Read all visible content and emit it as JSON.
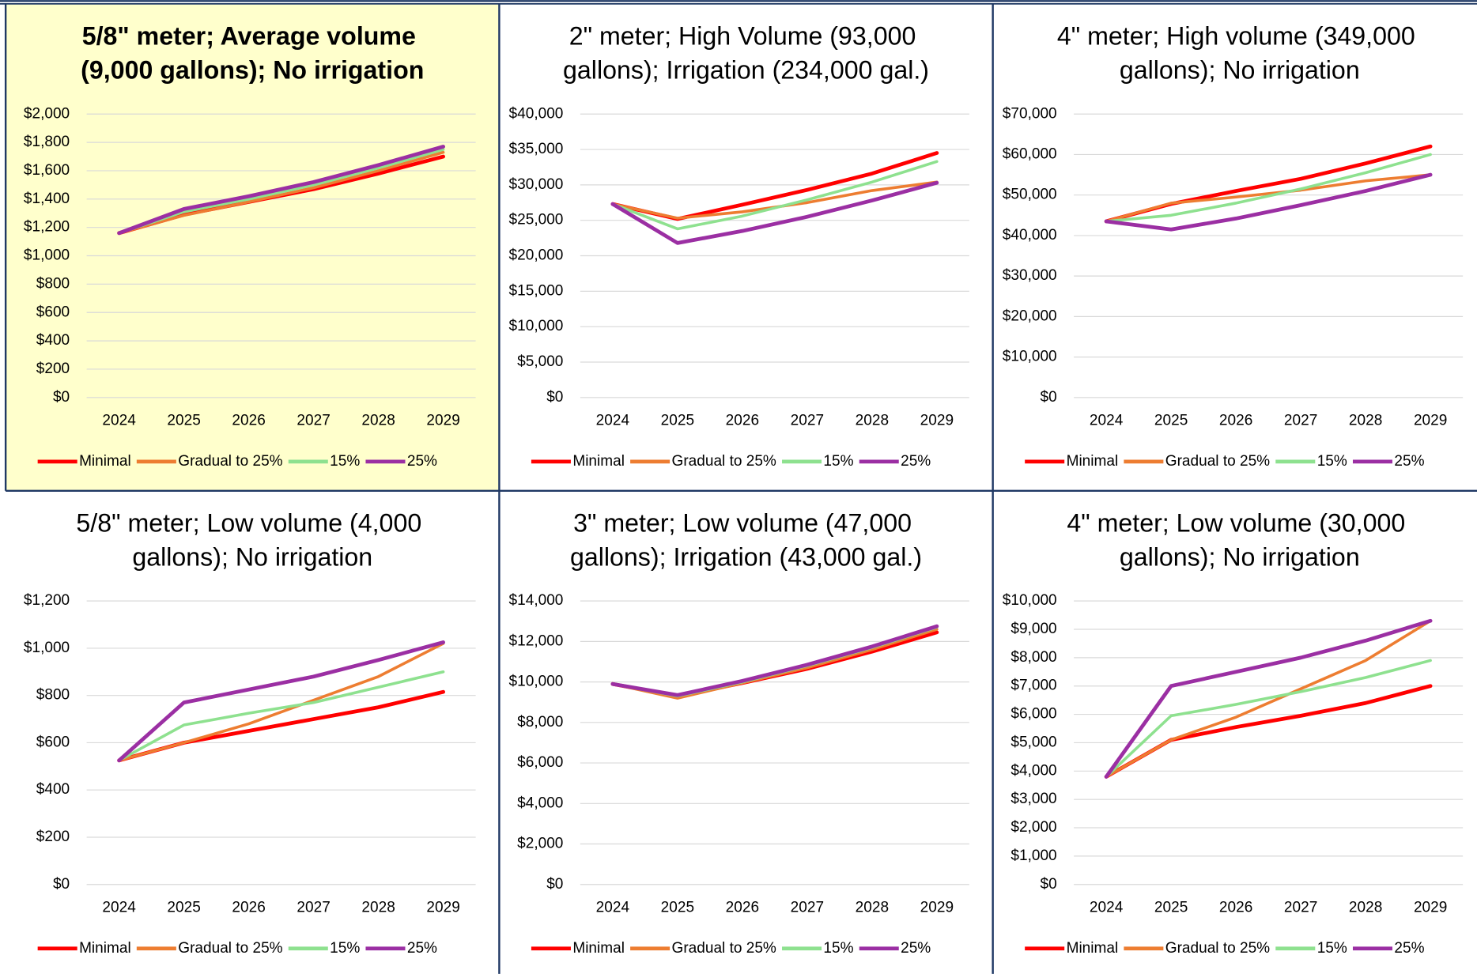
{
  "chart_data": [
    {
      "type": "line",
      "title": "5/8\" meter; Average volume (9,000 gallons); No irrigation",
      "title_bold": true,
      "background": "#ffffcc",
      "categories": [
        "2024",
        "2025",
        "2026",
        "2027",
        "2028",
        "2029"
      ],
      "ylim": [
        0,
        2000
      ],
      "yticks": [
        {
          "value": 0,
          "label": "$0"
        },
        {
          "value": 200,
          "label": "$200"
        },
        {
          "value": 400,
          "label": "$400"
        },
        {
          "value": 600,
          "label": "$600"
        },
        {
          "value": 800,
          "label": "$800"
        },
        {
          "value": 1000,
          "label": "$1,000"
        },
        {
          "value": 1200,
          "label": "$1,200"
        },
        {
          "value": 1400,
          "label": "$1,400"
        },
        {
          "value": 1600,
          "label": "$1,600"
        },
        {
          "value": 1800,
          "label": "$1,800"
        },
        {
          "value": 2000,
          "label": "$2,000"
        }
      ],
      "grid": true,
      "series": [
        {
          "name": "Minimal",
          "color": "#ff0000",
          "values": [
            1160,
            1290,
            1380,
            1470,
            1580,
            1700
          ]
        },
        {
          "name": "Gradual to 25%",
          "color": "#ed7d31",
          "values": [
            1160,
            1285,
            1380,
            1480,
            1600,
            1730
          ]
        },
        {
          "name": "15%",
          "color": "#8ee18f",
          "values": [
            1160,
            1310,
            1400,
            1500,
            1620,
            1750
          ]
        },
        {
          "name": "25%",
          "color": "#9b2fa3",
          "values": [
            1160,
            1330,
            1420,
            1520,
            1640,
            1770
          ]
        }
      ]
    },
    {
      "type": "line",
      "title": "2\" meter; High Volume (93,000 gallons); Irrigation (234,000 gal.)",
      "title_bold": false,
      "background": "#ffffff",
      "categories": [
        "2024",
        "2025",
        "2026",
        "2027",
        "2028",
        "2029"
      ],
      "ylim": [
        0,
        40000
      ],
      "yticks": [
        {
          "value": 0,
          "label": "$0"
        },
        {
          "value": 5000,
          "label": "$5,000"
        },
        {
          "value": 10000,
          "label": "$10,000"
        },
        {
          "value": 15000,
          "label": "$15,000"
        },
        {
          "value": 20000,
          "label": "$20,000"
        },
        {
          "value": 25000,
          "label": "$25,000"
        },
        {
          "value": 30000,
          "label": "$30,000"
        },
        {
          "value": 35000,
          "label": "$35,000"
        },
        {
          "value": 40000,
          "label": "$40,000"
        }
      ],
      "grid": true,
      "series": [
        {
          "name": "Minimal",
          "color": "#ff0000",
          "values": [
            27300,
            25200,
            27200,
            29300,
            31600,
            34500
          ]
        },
        {
          "name": "Gradual to 25%",
          "color": "#ed7d31",
          "values": [
            27300,
            25300,
            26200,
            27500,
            29200,
            30400
          ]
        },
        {
          "name": "15%",
          "color": "#8ee18f",
          "values": [
            27300,
            23800,
            25600,
            27900,
            30400,
            33300
          ]
        },
        {
          "name": "25%",
          "color": "#9b2fa3",
          "values": [
            27300,
            21800,
            23500,
            25500,
            27800,
            30300
          ]
        }
      ]
    },
    {
      "type": "line",
      "title": "4\" meter; High volume (349,000 gallons); No irrigation",
      "title_bold": false,
      "background": "#ffffff",
      "categories": [
        "2024",
        "2025",
        "2026",
        "2027",
        "2028",
        "2029"
      ],
      "ylim": [
        0,
        70000
      ],
      "yticks": [
        {
          "value": 0,
          "label": "$0"
        },
        {
          "value": 10000,
          "label": "$10,000"
        },
        {
          "value": 20000,
          "label": "$20,000"
        },
        {
          "value": 30000,
          "label": "$30,000"
        },
        {
          "value": 40000,
          "label": "$40,000"
        },
        {
          "value": 50000,
          "label": "$50,000"
        },
        {
          "value": 60000,
          "label": "$60,000"
        },
        {
          "value": 70000,
          "label": "$70,000"
        }
      ],
      "grid": true,
      "series": [
        {
          "name": "Minimal",
          "color": "#ff0000",
          "values": [
            43500,
            47800,
            51000,
            54000,
            57800,
            62000
          ]
        },
        {
          "name": "Gradual to 25%",
          "color": "#ed7d31",
          "values": [
            43500,
            48000,
            49500,
            51200,
            53500,
            55000
          ]
        },
        {
          "name": "15%",
          "color": "#8ee18f",
          "values": [
            43500,
            45000,
            48000,
            51500,
            55500,
            60000
          ]
        },
        {
          "name": "25%",
          "color": "#9b2fa3",
          "values": [
            43500,
            41500,
            44200,
            47500,
            51000,
            55000
          ]
        }
      ]
    },
    {
      "type": "line",
      "title": "5/8\" meter; Low volume (4,000 gallons); No irrigation",
      "title_bold": false,
      "background": "#ffffff",
      "categories": [
        "2024",
        "2025",
        "2026",
        "2027",
        "2028",
        "2029"
      ],
      "ylim": [
        0,
        1200
      ],
      "yticks": [
        {
          "value": 0,
          "label": "$0"
        },
        {
          "value": 200,
          "label": "$200"
        },
        {
          "value": 400,
          "label": "$400"
        },
        {
          "value": 600,
          "label": "$600"
        },
        {
          "value": 800,
          "label": "$800"
        },
        {
          "value": 1000,
          "label": "$1,000"
        },
        {
          "value": 1200,
          "label": "$1,200"
        }
      ],
      "grid": true,
      "series": [
        {
          "name": "Minimal",
          "color": "#ff0000",
          "values": [
            525,
            600,
            650,
            700,
            750,
            815
          ]
        },
        {
          "name": "Gradual to 25%",
          "color": "#ed7d31",
          "values": [
            525,
            600,
            680,
            780,
            880,
            1020
          ]
        },
        {
          "name": "15%",
          "color": "#8ee18f",
          "values": [
            525,
            675,
            725,
            770,
            835,
            900
          ]
        },
        {
          "name": "25%",
          "color": "#9b2fa3",
          "values": [
            525,
            770,
            825,
            880,
            950,
            1025
          ]
        }
      ]
    },
    {
      "type": "line",
      "title": "3\" meter; Low volume (47,000 gallons); Irrigation (43,000 gal.)",
      "title_bold": false,
      "background": "#ffffff",
      "categories": [
        "2024",
        "2025",
        "2026",
        "2027",
        "2028",
        "2029"
      ],
      "ylim": [
        0,
        14000
      ],
      "yticks": [
        {
          "value": 0,
          "label": "$0"
        },
        {
          "value": 2000,
          "label": "$2,000"
        },
        {
          "value": 4000,
          "label": "$4,000"
        },
        {
          "value": 6000,
          "label": "$6,000"
        },
        {
          "value": 8000,
          "label": "$8,000"
        },
        {
          "value": 10000,
          "label": "$10,000"
        },
        {
          "value": 12000,
          "label": "$12,000"
        },
        {
          "value": 14000,
          "label": "$14,000"
        }
      ],
      "grid": true,
      "series": [
        {
          "name": "Minimal",
          "color": "#ff0000",
          "values": [
            9900,
            9300,
            9950,
            10650,
            11500,
            12450
          ]
        },
        {
          "name": "Gradual to 25%",
          "color": "#ed7d31",
          "values": [
            9900,
            9200,
            9950,
            10700,
            11600,
            12600
          ]
        },
        {
          "name": "15%",
          "color": "#8ee18f",
          "values": [
            9900,
            9300,
            10000,
            10800,
            11700,
            12700
          ]
        },
        {
          "name": "25%",
          "color": "#9b2fa3",
          "values": [
            9900,
            9350,
            10050,
            10850,
            11750,
            12750
          ]
        }
      ]
    },
    {
      "type": "line",
      "title": "4\" meter; Low volume (30,000 gallons); No irrigation",
      "title_bold": false,
      "background": "#ffffff",
      "categories": [
        "2024",
        "2025",
        "2026",
        "2027",
        "2028",
        "2029"
      ],
      "ylim": [
        0,
        10000
      ],
      "yticks": [
        {
          "value": 0,
          "label": "$0"
        },
        {
          "value": 1000,
          "label": "$1,000"
        },
        {
          "value": 2000,
          "label": "$2,000"
        },
        {
          "value": 3000,
          "label": "$3,000"
        },
        {
          "value": 4000,
          "label": "$4,000"
        },
        {
          "value": 5000,
          "label": "$5,000"
        },
        {
          "value": 6000,
          "label": "$6,000"
        },
        {
          "value": 7000,
          "label": "$7,000"
        },
        {
          "value": 8000,
          "label": "$8,000"
        },
        {
          "value": 9000,
          "label": "$9,000"
        },
        {
          "value": 10000,
          "label": "$10,000"
        }
      ],
      "grid": true,
      "series": [
        {
          "name": "Minimal",
          "color": "#ff0000",
          "values": [
            3800,
            5100,
            5550,
            5950,
            6400,
            7000
          ]
        },
        {
          "name": "Gradual to 25%",
          "color": "#ed7d31",
          "values": [
            3800,
            5100,
            5900,
            6900,
            7900,
            9300
          ]
        },
        {
          "name": "15%",
          "color": "#8ee18f",
          "values": [
            3800,
            5950,
            6350,
            6800,
            7300,
            7900
          ]
        },
        {
          "name": "25%",
          "color": "#9b2fa3",
          "values": [
            3800,
            7000,
            7500,
            8000,
            8600,
            9300
          ]
        }
      ]
    }
  ]
}
